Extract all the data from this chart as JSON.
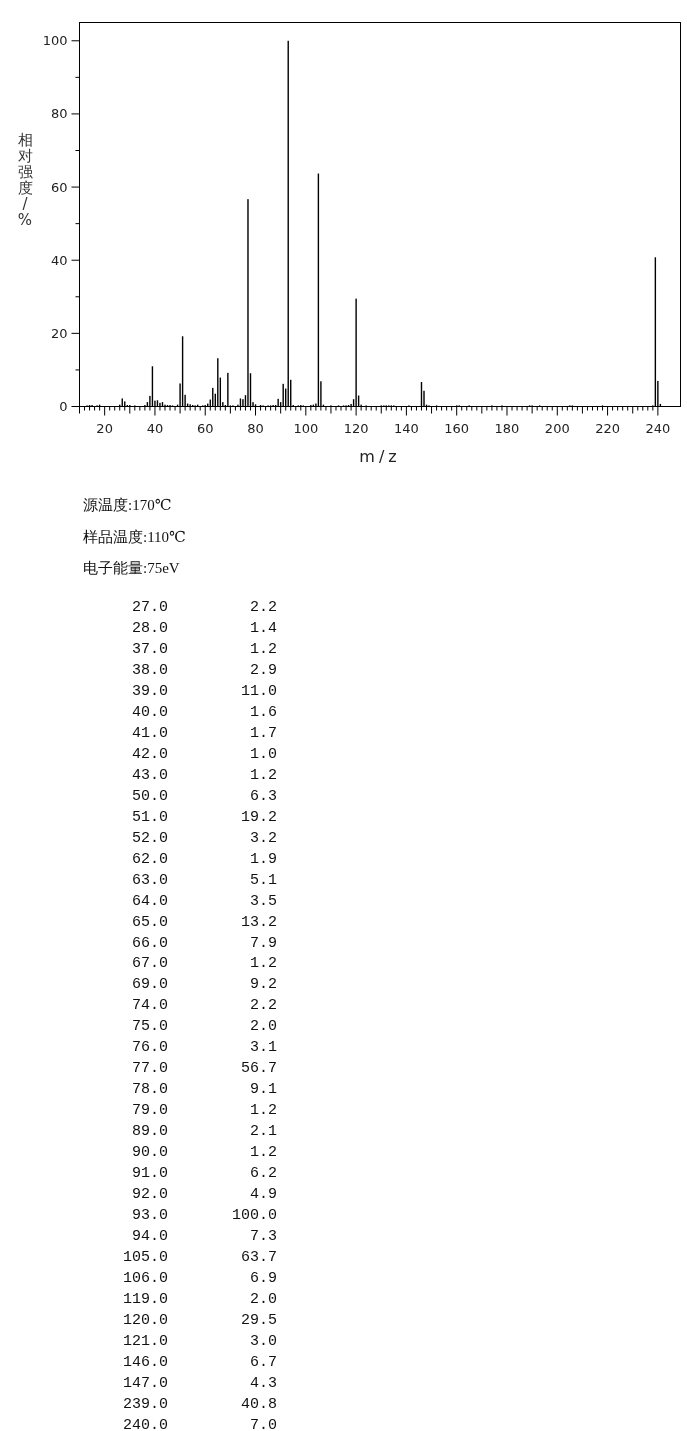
{
  "chart_data": [
    {
      "type": "bar",
      "xlabel": "m/z",
      "ylabel": "相对强度/%",
      "color": "#000000",
      "xlim": [
        10,
        249
      ],
      "ylim": [
        0,
        105
      ],
      "xticks": [
        {
          "value": 10,
          "label": null
        },
        {
          "value": 12,
          "label": null
        },
        {
          "value": 14,
          "label": null
        },
        {
          "value": 16,
          "label": null
        },
        {
          "value": 18,
          "label": null
        },
        20,
        {
          "value": 22,
          "label": null
        },
        {
          "value": 24,
          "label": null
        },
        {
          "value": 26,
          "label": null
        },
        {
          "value": 28,
          "label": null
        },
        {
          "value": 30,
          "label": null
        },
        {
          "value": 32,
          "label": null
        },
        {
          "value": 34,
          "label": null
        },
        {
          "value": 36,
          "label": null
        },
        {
          "value": 38,
          "label": null
        },
        40,
        {
          "value": 42,
          "label": null
        },
        {
          "value": 44,
          "label": null
        },
        {
          "value": 46,
          "label": null
        },
        {
          "value": 48,
          "label": null
        },
        {
          "value": 50,
          "label": null
        },
        {
          "value": 52,
          "label": null
        },
        {
          "value": 54,
          "label": null
        },
        {
          "value": 56,
          "label": null
        },
        {
          "value": 58,
          "label": null
        },
        60,
        {
          "value": 62,
          "label": null
        },
        {
          "value": 64,
          "label": null
        },
        {
          "value": 66,
          "label": null
        },
        {
          "value": 68,
          "label": null
        },
        {
          "value": 70,
          "label": null
        },
        {
          "value": 72,
          "label": null
        },
        {
          "value": 74,
          "label": null
        },
        {
          "value": 76,
          "label": null
        },
        {
          "value": 78,
          "label": null
        },
        80,
        {
          "value": 82,
          "label": null
        },
        {
          "value": 84,
          "label": null
        },
        {
          "value": 86,
          "label": null
        },
        {
          "value": 88,
          "label": null
        },
        {
          "value": 90,
          "label": null
        },
        {
          "value": 92,
          "label": null
        },
        {
          "value": 94,
          "label": null
        },
        {
          "value": 96,
          "label": null
        },
        {
          "value": 98,
          "label": null
        },
        100,
        {
          "value": 102,
          "label": null
        },
        {
          "value": 104,
          "label": null
        },
        {
          "value": 106,
          "label": null
        },
        {
          "value": 108,
          "label": null
        },
        {
          "value": 110,
          "label": null
        },
        {
          "value": 112,
          "label": null
        },
        {
          "value": 114,
          "label": null
        },
        {
          "value": 116,
          "label": null
        },
        {
          "value": 118,
          "label": null
        },
        120,
        {
          "value": 122,
          "label": null
        },
        {
          "value": 124,
          "label": null
        },
        {
          "value": 126,
          "label": null
        },
        {
          "value": 128,
          "label": null
        },
        {
          "value": 130,
          "label": null
        },
        {
          "value": 132,
          "label": null
        },
        {
          "value": 134,
          "label": null
        },
        {
          "value": 136,
          "label": null
        },
        {
          "value": 138,
          "label": null
        },
        140,
        {
          "value": 142,
          "label": null
        },
        {
          "value": 144,
          "label": null
        },
        {
          "value": 146,
          "label": null
        },
        {
          "value": 148,
          "label": null
        },
        {
          "value": 150,
          "label": null
        },
        {
          "value": 152,
          "label": null
        },
        {
          "value": 154,
          "label": null
        },
        {
          "value": 156,
          "label": null
        },
        {
          "value": 158,
          "label": null
        },
        160,
        {
          "value": 162,
          "label": null
        },
        {
          "value": 164,
          "label": null
        },
        {
          "value": 166,
          "label": null
        },
        {
          "value": 168,
          "label": null
        },
        {
          "value": 170,
          "label": null
        },
        {
          "value": 172,
          "label": null
        },
        {
          "value": 174,
          "label": null
        },
        {
          "value": 176,
          "label": null
        },
        {
          "value": 178,
          "label": null
        },
        180,
        {
          "value": 182,
          "label": null
        },
        {
          "value": 184,
          "label": null
        },
        {
          "value": 186,
          "label": null
        },
        {
          "value": 188,
          "label": null
        },
        {
          "value": 190,
          "label": null
        },
        {
          "value": 192,
          "label": null
        },
        {
          "value": 194,
          "label": null
        },
        {
          "value": 196,
          "label": null
        },
        {
          "value": 198,
          "label": null
        },
        200,
        {
          "value": 202,
          "label": null
        },
        {
          "value": 204,
          "label": null
        },
        {
          "value": 206,
          "label": null
        },
        {
          "value": 208,
          "label": null
        },
        {
          "value": 210,
          "label": null
        },
        {
          "value": 212,
          "label": null
        },
        {
          "value": 214,
          "label": null
        },
        {
          "value": 216,
          "label": null
        },
        {
          "value": 218,
          "label": null
        },
        220,
        {
          "value": 222,
          "label": null
        },
        {
          "value": 224,
          "label": null
        },
        {
          "value": 226,
          "label": null
        },
        {
          "value": 228,
          "label": null
        },
        {
          "value": 230,
          "label": null
        },
        {
          "value": 232,
          "label": null
        },
        {
          "value": 234,
          "label": null
        },
        {
          "value": 236,
          "label": null
        },
        {
          "value": 238,
          "label": null
        },
        240
      ],
      "yticks": [
        0,
        {
          "value": 10,
          "label": null
        },
        20,
        {
          "value": 30,
          "label": null
        },
        40,
        {
          "value": 50,
          "label": null
        },
        60,
        {
          "value": 70,
          "label": null
        },
        80,
        {
          "value": 90,
          "label": null
        },
        100
      ],
      "x": [
        13,
        14,
        15,
        17,
        18,
        26,
        27,
        28,
        29,
        30,
        32,
        36,
        37,
        38,
        39,
        40,
        41,
        42,
        43,
        44,
        45,
        46,
        47,
        49,
        50,
        51,
        52,
        53,
        54,
        55,
        56,
        57,
        59,
        60,
        61,
        62,
        63,
        64,
        65,
        66,
        67,
        68,
        69,
        70,
        71,
        73,
        74,
        75,
        76,
        77,
        78,
        79,
        80,
        82,
        83,
        85,
        86,
        87,
        88,
        89,
        90,
        91,
        92,
        93,
        94,
        95,
        97,
        98,
        99,
        102,
        103,
        104,
        105,
        106,
        107,
        110,
        113,
        115,
        116,
        117,
        118,
        119,
        120,
        121,
        122,
        124,
        130,
        131,
        132,
        133,
        134,
        135,
        141,
        146,
        147,
        148,
        149,
        152,
        160,
        161,
        165,
        174,
        178,
        189,
        190,
        193,
        205,
        206,
        218,
        238,
        239,
        240,
        241
      ],
      "values": [
        0.3,
        0.4,
        0.4,
        0.3,
        0.5,
        0.5,
        2.2,
        1.4,
        0.4,
        0.4,
        0.3,
        0.4,
        1.2,
        2.9,
        11.0,
        1.6,
        1.7,
        1.0,
        1.2,
        0.5,
        0.4,
        0.4,
        0.3,
        0.5,
        6.3,
        19.2,
        3.2,
        0.8,
        0.6,
        0.4,
        0.3,
        0.5,
        0.3,
        0.4,
        0.8,
        1.9,
        5.1,
        3.5,
        13.2,
        7.9,
        1.2,
        0.4,
        9.2,
        0.3,
        0.3,
        0.5,
        2.2,
        2.0,
        3.1,
        56.7,
        9.1,
        1.2,
        0.6,
        0.4,
        0.3,
        0.3,
        0.3,
        0.4,
        0.4,
        2.1,
        1.2,
        6.2,
        4.9,
        100.0,
        7.3,
        0.4,
        0.3,
        0.4,
        0.3,
        0.4,
        0.5,
        0.8,
        63.7,
        6.9,
        0.5,
        0.3,
        0.3,
        0.3,
        0.3,
        0.4,
        0.7,
        2.0,
        29.5,
        3.0,
        0.5,
        0.3,
        0.3,
        0.3,
        0.3,
        0.3,
        0.3,
        0.3,
        0.3,
        6.7,
        4.3,
        0.5,
        0.3,
        0.3,
        0.3,
        0.3,
        0.3,
        0.3,
        0.3,
        0.3,
        0.3,
        0.3,
        0.3,
        0.3,
        0.3,
        0.3,
        40.8,
        7.0,
        0.7
      ],
      "annotations": [
        "源温度:170℃",
        "样品温度:110℃",
        "电子能量:75eV"
      ]
    },
    {
      "type": "other",
      "categories": [
        "27.0",
        "28.0",
        "37.0",
        "38.0",
        "39.0",
        "40.0",
        "41.0",
        "42.0",
        "43.0",
        "50.0",
        "51.0",
        "52.0",
        "62.0",
        "63.0",
        "64.0",
        "65.0",
        "66.0",
        "67.0",
        "69.0",
        "74.0",
        "75.0",
        "76.0",
        "77.0",
        "78.0",
        "79.0",
        "89.0",
        "90.0",
        "91.0",
        "92.0",
        "93.0",
        "94.0",
        "105.0",
        "106.0",
        "119.0",
        "120.0",
        "121.0",
        "146.0",
        "147.0",
        "239.0",
        "240.0"
      ],
      "values": [
        2.2,
        1.4,
        1.2,
        2.9,
        11.0,
        1.6,
        1.7,
        1.0,
        1.2,
        6.3,
        19.2,
        3.2,
        1.9,
        5.1,
        3.5,
        13.2,
        7.9,
        1.2,
        9.2,
        2.2,
        2.0,
        3.1,
        56.7,
        9.1,
        1.2,
        2.1,
        1.2,
        6.2,
        4.9,
        100.0,
        7.3,
        63.7,
        6.9,
        2.0,
        29.5,
        3.0,
        6.7,
        4.3,
        40.8,
        7.0
      ],
      "value_labels": [
        "2.2",
        "1.4",
        "1.2",
        "2.9",
        "11.0",
        "1.6",
        "1.7",
        "1.0",
        "1.2",
        "6.3",
        "19.2",
        "3.2",
        "1.9",
        "5.1",
        "3.5",
        "13.2",
        "7.9",
        "1.2",
        "9.2",
        "2.2",
        "2.0",
        "3.1",
        "56.7",
        "9.1",
        "1.2",
        "2.1",
        "1.2",
        "6.2",
        "4.9",
        "100.0",
        "7.3",
        "63.7",
        "6.9",
        "2.0",
        "29.5",
        "3.0",
        "6.7",
        "4.3",
        "40.8",
        "7.0"
      ]
    }
  ]
}
